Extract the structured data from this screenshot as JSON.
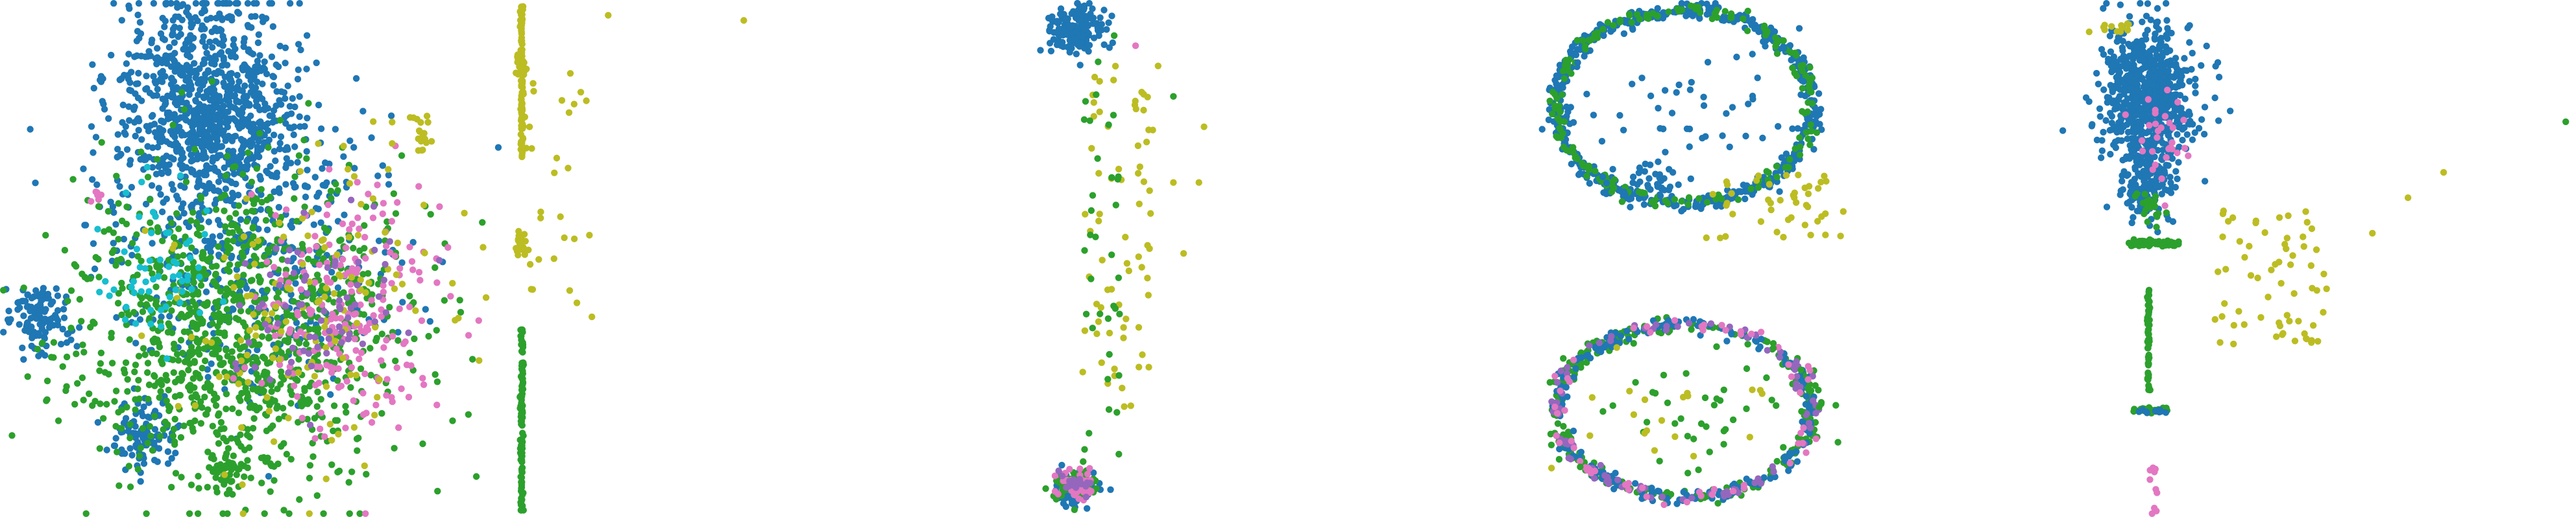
{
  "figure": {
    "panel_count": 4,
    "background": "#ffffff"
  },
  "palette": {
    "blue": "#1f77b4",
    "green": "#2ca02c",
    "pink": "#e377c2",
    "olive": "#bcbd22",
    "cyan": "#17becf",
    "purple": "#9467bd"
  },
  "chart_data": [
    {
      "type": "scatter",
      "panel": 1,
      "title": "",
      "xlabel": "",
      "ylabel": "",
      "axes_visible": false,
      "grid": false,
      "legend": "none",
      "xlim": [
        0,
        100
      ],
      "ylim": [
        0,
        100
      ],
      "clusters": [
        {
          "color": "blue",
          "shape": "blob",
          "center": [
            39,
            86
          ],
          "spread": [
            9,
            9
          ],
          "count": 520
        },
        {
          "color": "blue",
          "shape": "blob",
          "center": [
            43,
            74
          ],
          "spread": [
            8,
            7
          ],
          "count": 420
        },
        {
          "color": "blue",
          "shape": "blob",
          "center": [
            28,
            15
          ],
          "spread": [
            3.5,
            3
          ],
          "count": 110
        },
        {
          "color": "blue",
          "shape": "blob",
          "center": [
            7,
            38
          ],
          "spread": [
            3,
            3.5
          ],
          "count": 120
        },
        {
          "color": "blue",
          "shape": "blob",
          "center": [
            48,
            52
          ],
          "spread": [
            16,
            14
          ],
          "count": 420
        },
        {
          "color": "green",
          "shape": "blob",
          "center": [
            46,
            36
          ],
          "spread": [
            16,
            15
          ],
          "count": 1100
        },
        {
          "color": "green",
          "shape": "blob",
          "center": [
            45,
            8
          ],
          "spread": [
            2,
            3
          ],
          "count": 50
        },
        {
          "color": "pink",
          "shape": "blob",
          "center": [
            68,
            40
          ],
          "spread": [
            9,
            12
          ],
          "count": 210
        },
        {
          "color": "olive",
          "shape": "blob",
          "center": [
            60,
            40
          ],
          "spread": [
            16,
            16
          ],
          "count": 140
        },
        {
          "color": "cyan",
          "shape": "blob",
          "center": [
            30,
            48
          ],
          "spread": [
            6,
            8
          ],
          "count": 60
        },
        {
          "color": "purple",
          "shape": "blob",
          "center": [
            62,
            38
          ],
          "spread": [
            8,
            8
          ],
          "count": 70
        },
        {
          "color": "olive",
          "shape": "blob",
          "center": [
            83,
            75
          ],
          "spread": [
            1.2,
            1.8
          ],
          "count": 18
        },
        {
          "color": "pink",
          "shape": "blob",
          "center": [
            18,
            63
          ],
          "spread": [
            0.8,
            0.8
          ],
          "count": 6
        }
      ]
    },
    {
      "type": "scatter",
      "panel": 2,
      "title": "",
      "xlabel": "",
      "ylabel": "",
      "axes_visible": false,
      "grid": false,
      "legend": "none",
      "xlim": [
        0,
        100
      ],
      "ylim": [
        0,
        100
      ],
      "clusters": [
        {
          "color": "olive",
          "shape": "vline",
          "x": 0.8,
          "y_range": [
            70,
            100
          ],
          "count": 110
        },
        {
          "color": "green",
          "shape": "vline",
          "x": 0.8,
          "y_range": [
            0,
            36
          ],
          "count": 110
        },
        {
          "color": "olive",
          "shape": "blob",
          "center": [
            0.8,
            53
          ],
          "spread": [
            0.6,
            1.4
          ],
          "count": 26
        },
        {
          "color": "olive",
          "shape": "blob",
          "center": [
            0.5,
            88
          ],
          "spread": [
            0.5,
            1.2
          ],
          "count": 20
        },
        {
          "color": "olive",
          "shape": "scatter",
          "x_range": [
            1,
            15
          ],
          "y_range": [
            38,
            98
          ],
          "count": 30
        },
        {
          "color": "olive",
          "shape": "points",
          "points": [
            [
              45,
              97
            ],
            [
              18,
              98
            ]
          ]
        }
      ]
    },
    {
      "type": "scatter",
      "panel": 3,
      "title": "",
      "xlabel": "",
      "ylabel": "",
      "axes_visible": false,
      "grid": false,
      "legend": "none",
      "xlim": [
        0,
        100
      ],
      "ylim": [
        0,
        100
      ],
      "clusters": [
        {
          "color": "blue",
          "shape": "blob",
          "center": [
            4.3,
            95
          ],
          "spread": [
            1.3,
            2.4
          ],
          "count": 170
        },
        {
          "color": "blue",
          "shape": "blob",
          "center": [
            4.3,
            5
          ],
          "spread": [
            1.2,
            2
          ],
          "count": 70
        },
        {
          "color": "green",
          "shape": "blob",
          "center": [
            4.3,
            5
          ],
          "spread": [
            1.2,
            2
          ],
          "count": 60
        },
        {
          "color": "pink",
          "shape": "blob",
          "center": [
            4.5,
            5
          ],
          "spread": [
            1,
            1.8
          ],
          "count": 40
        },
        {
          "color": "purple",
          "shape": "blob",
          "center": [
            4.4,
            6
          ],
          "spread": [
            1,
            1.6
          ],
          "count": 20
        },
        {
          "color": "olive",
          "shape": "scatter",
          "x_range": [
            5,
            12
          ],
          "y_range": [
            20,
            88
          ],
          "count": 70
        },
        {
          "color": "green",
          "shape": "scatter",
          "x_range": [
            5,
            9
          ],
          "y_range": [
            10,
            90
          ],
          "count": 35
        },
        {
          "color": "olive",
          "shape": "points",
          "points": [
            [
              17,
              76
            ],
            [
              16.5,
              65
            ],
            [
              15,
              51
            ],
            [
              14,
              65
            ],
            [
              12.5,
              88
            ]
          ]
        },
        {
          "color": "green",
          "shape": "points",
          "points": [
            [
              14,
              82
            ],
            [
              8.2,
              94
            ]
          ]
        },
        {
          "color": "pink",
          "shape": "points",
          "points": [
            [
              10.3,
              92
            ]
          ]
        },
        {
          "color": "blue",
          "shape": "ellipse",
          "center": [
            64,
            80
          ],
          "radii": [
            12.5,
            19
          ],
          "count": 540,
          "jitter": 0.5
        },
        {
          "color": "green",
          "shape": "ellipse",
          "center": [
            64,
            80
          ],
          "radii": [
            12.5,
            19
          ],
          "count": 200,
          "jitter": 0.5
        },
        {
          "color": "blue",
          "shape": "blob",
          "center": [
            64,
            80
          ],
          "spread": [
            6,
            9
          ],
          "count": 45
        },
        {
          "color": "blue",
          "shape": "blob",
          "center": [
            61,
            65
          ],
          "spread": [
            1.8,
            2.2
          ],
          "count": 40
        },
        {
          "color": "olive",
          "shape": "scatter",
          "x_range": [
            66,
            80
          ],
          "y_range": [
            53,
            67
          ],
          "count": 45
        },
        {
          "color": "green",
          "shape": "ellipse",
          "center": [
            64,
            20
          ],
          "radii": [
            12.5,
            17
          ],
          "count": 300,
          "jitter": 0.5
        },
        {
          "color": "blue",
          "shape": "ellipse",
          "center": [
            64,
            20
          ],
          "radii": [
            12.5,
            17
          ],
          "count": 210,
          "jitter": 0.5
        },
        {
          "color": "purple",
          "shape": "ellipse",
          "center": [
            64,
            20
          ],
          "radii": [
            12.5,
            17
          ],
          "count": 90,
          "jitter": 0.5
        },
        {
          "color": "pink",
          "shape": "ellipse",
          "center": [
            64,
            20
          ],
          "radii": [
            12.5,
            17
          ],
          "count": 60,
          "jitter": 0.5
        },
        {
          "color": "green",
          "shape": "blob",
          "center": [
            64,
            20
          ],
          "spread": [
            6,
            6
          ],
          "count": 45
        },
        {
          "color": "olive",
          "shape": "blob",
          "center": [
            64,
            20
          ],
          "spread": [
            6,
            6
          ],
          "count": 20
        }
      ]
    },
    {
      "type": "scatter",
      "panel": 4,
      "title": "",
      "xlabel": "",
      "ylabel": "",
      "axes_visible": false,
      "grid": false,
      "legend": "none",
      "xlim": [
        0,
        100
      ],
      "ylim": [
        0,
        100
      ],
      "clusters": [
        {
          "color": "blue",
          "shape": "blob",
          "center": [
            17,
            82
          ],
          "spread": [
            4.5,
            7
          ],
          "count": 700
        },
        {
          "color": "blue",
          "shape": "blob",
          "center": [
            17,
            65
          ],
          "spread": [
            2.5,
            4
          ],
          "count": 150
        },
        {
          "color": "pink",
          "shape": "blob",
          "center": [
            19,
            75
          ],
          "spread": [
            3,
            6
          ],
          "count": 30
        },
        {
          "color": "green",
          "shape": "blob",
          "center": [
            17,
            60
          ],
          "spread": [
            1.5,
            2
          ],
          "count": 20
        },
        {
          "color": "olive",
          "shape": "blob",
          "center": [
            10,
            96
          ],
          "spread": [
            2,
            1
          ],
          "count": 12
        },
        {
          "color": "green",
          "shape": "hline",
          "y": 53,
          "x_range": [
            13,
            23
          ],
          "count": 60
        },
        {
          "color": "green",
          "shape": "vline",
          "x": 17,
          "y_range": [
            24,
            44
          ],
          "count": 60
        },
        {
          "color": "green",
          "shape": "hline",
          "y": 20,
          "x_range": [
            14,
            21
          ],
          "count": 30
        },
        {
          "color": "blue",
          "shape": "hline",
          "y": 20,
          "x_range": [
            14,
            21
          ],
          "count": 10
        },
        {
          "color": "pink",
          "shape": "blob",
          "center": [
            18,
            5
          ],
          "spread": [
            0.6,
            4
          ],
          "count": 10
        },
        {
          "color": "olive",
          "shape": "scatter",
          "x_range": [
            30,
            52
          ],
          "y_range": [
            33,
            60
          ],
          "count": 65
        },
        {
          "color": "olive",
          "shape": "points",
          "points": [
            [
              75,
              67
            ],
            [
              68,
              62
            ],
            [
              61,
              55
            ]
          ]
        },
        {
          "color": "green",
          "shape": "points",
          "points": [
            [
              99,
              77
            ]
          ]
        }
      ]
    }
  ]
}
